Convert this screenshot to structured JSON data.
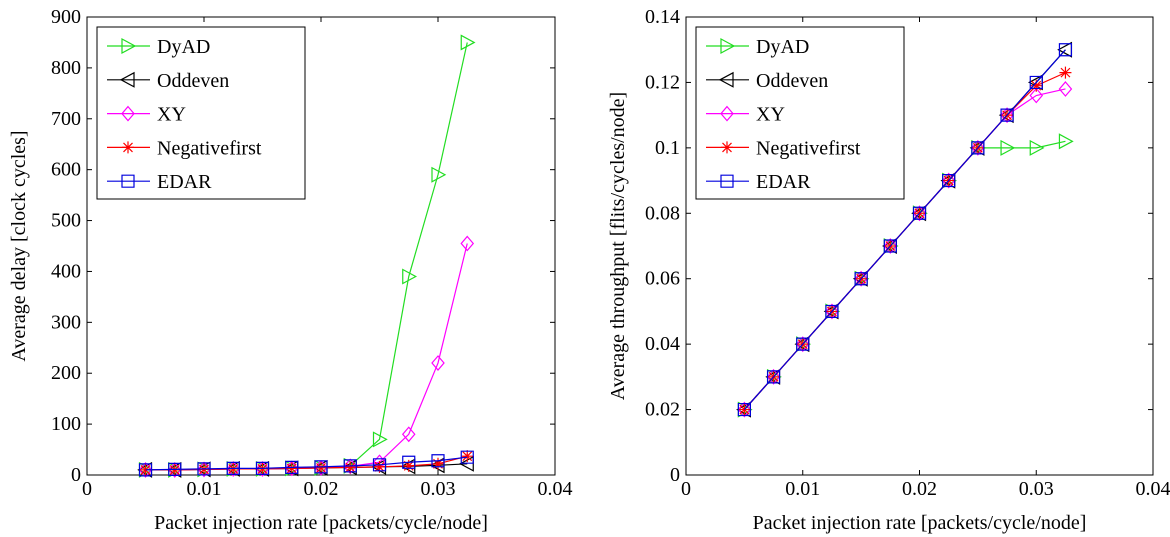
{
  "chart_data": [
    {
      "type": "line",
      "xlabel": "Packet injection rate [packets/cycle/node]",
      "ylabel": "Average delay [clock cycles]",
      "x": [
        0.005,
        0.0075,
        0.01,
        0.0125,
        0.015,
        0.0175,
        0.02,
        0.0225,
        0.025,
        0.0275,
        0.03,
        0.0325
      ],
      "series": [
        {
          "name": "DyAD",
          "color": "#22dd22",
          "marker": "triangle-right",
          "values": [
            10,
            10,
            11,
            12,
            12,
            13,
            14,
            18,
            70,
            390,
            590,
            850
          ]
        },
        {
          "name": "Oddeven",
          "color": "#000000",
          "marker": "triangle-left",
          "values": [
            10,
            10,
            11,
            12,
            12,
            13,
            14,
            15,
            16,
            17,
            19,
            22
          ]
        },
        {
          "name": "XY",
          "color": "#ff00ff",
          "marker": "diamond",
          "values": [
            10,
            10,
            11,
            12,
            12,
            13,
            14,
            17,
            25,
            80,
            220,
            455
          ]
        },
        {
          "name": "Negativefirst",
          "color": "#ff0000",
          "marker": "asterisk",
          "values": [
            10,
            10,
            11,
            12,
            12,
            13,
            14,
            15,
            16,
            18,
            22,
            37
          ]
        },
        {
          "name": "EDAR",
          "color": "#0000dd",
          "marker": "square",
          "values": [
            10,
            11,
            12,
            13,
            13,
            15,
            16,
            18,
            20,
            25,
            28,
            35
          ]
        }
      ],
      "xlim": [
        0,
        0.04
      ],
      "ylim": [
        0,
        900
      ],
      "xticks": [
        0,
        0.01,
        0.02,
        0.03,
        0.04
      ],
      "yticks": [
        0,
        100,
        200,
        300,
        400,
        500,
        600,
        700,
        800,
        900
      ],
      "legend": "upper left"
    },
    {
      "type": "line",
      "xlabel": "Packet injection rate [packets/cycle/node]",
      "ylabel": "Average throughput [flits/cycles/node]",
      "x": [
        0.005,
        0.0075,
        0.01,
        0.0125,
        0.015,
        0.0175,
        0.02,
        0.0225,
        0.025,
        0.0275,
        0.03,
        0.0325
      ],
      "series": [
        {
          "name": "DyAD",
          "color": "#22dd22",
          "marker": "triangle-right",
          "values": [
            0.02,
            0.03,
            0.04,
            0.05,
            0.06,
            0.07,
            0.08,
            0.09,
            0.1,
            0.1,
            0.1,
            0.102
          ]
        },
        {
          "name": "Oddeven",
          "color": "#000000",
          "marker": "triangle-left",
          "values": [
            0.02,
            0.03,
            0.04,
            0.05,
            0.06,
            0.07,
            0.08,
            0.09,
            0.1,
            0.11,
            0.12,
            0.13
          ]
        },
        {
          "name": "XY",
          "color": "#ff00ff",
          "marker": "diamond",
          "values": [
            0.02,
            0.03,
            0.04,
            0.05,
            0.06,
            0.07,
            0.08,
            0.09,
            0.1,
            0.11,
            0.116,
            0.118
          ]
        },
        {
          "name": "Negativefirst",
          "color": "#ff0000",
          "marker": "asterisk",
          "values": [
            0.02,
            0.03,
            0.04,
            0.05,
            0.06,
            0.07,
            0.08,
            0.09,
            0.1,
            0.11,
            0.119,
            0.123
          ]
        },
        {
          "name": "EDAR",
          "color": "#0000dd",
          "marker": "square",
          "values": [
            0.02,
            0.03,
            0.04,
            0.05,
            0.06,
            0.07,
            0.08,
            0.09,
            0.1,
            0.11,
            0.12,
            0.13
          ]
        }
      ],
      "xlim": [
        0,
        0.04
      ],
      "ylim": [
        0,
        0.14
      ],
      "xticks": [
        0,
        0.01,
        0.02,
        0.03,
        0.04
      ],
      "yticks": [
        0,
        0.02,
        0.04,
        0.06,
        0.08,
        0.1,
        0.12,
        0.14
      ],
      "legend": "upper left"
    }
  ]
}
